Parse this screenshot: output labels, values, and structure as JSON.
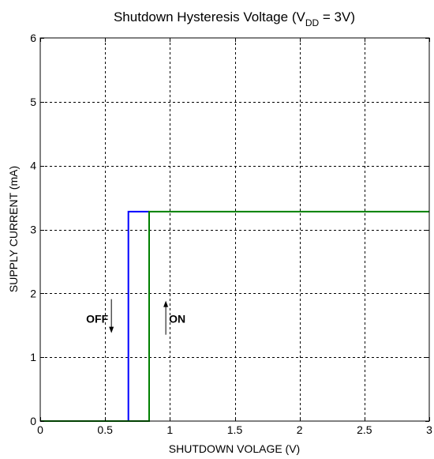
{
  "chart_data": {
    "type": "line",
    "title": {
      "main": "Shutdown Hysteresis Voltage (V",
      "sub": "DD",
      "tail": " = 3V)"
    },
    "xlabel": "SHUTDOWN VOLAGE (V)",
    "ylabel": "SUPPLY CURRENT (mA)",
    "xlim": [
      0,
      3
    ],
    "ylim": [
      0,
      6
    ],
    "xticks": [
      0,
      0.5,
      1,
      1.5,
      2,
      2.5,
      3
    ],
    "xtick_labels": [
      "0",
      "0.5",
      "1",
      "1.5",
      "2",
      "2.5",
      "3"
    ],
    "yticks": [
      0,
      1,
      2,
      3,
      4,
      5,
      6
    ],
    "ytick_labels": [
      "0",
      "1",
      "2",
      "3",
      "4",
      "5",
      "6"
    ],
    "grid": true,
    "series": [
      {
        "color": "#0000ff",
        "x": [
          0,
          0.68,
          0.68,
          0.84
        ],
        "y": [
          0,
          0,
          3.28,
          3.28
        ]
      },
      {
        "color": "#008000",
        "x": [
          0,
          0.84,
          0.84,
          3
        ],
        "y": [
          0,
          0,
          3.28,
          3.28
        ]
      }
    ],
    "annotations": [
      {
        "text": "OFF",
        "x": 0.5,
        "y": 1.6,
        "arrow": "down"
      },
      {
        "text": "ON",
        "x": 0.95,
        "y": 1.6,
        "arrow": "up"
      }
    ]
  }
}
